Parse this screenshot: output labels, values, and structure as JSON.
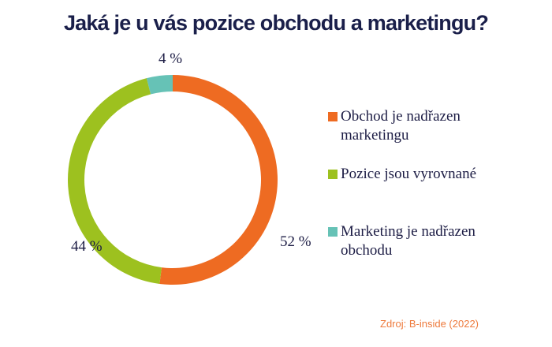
{
  "chart_data": {
    "type": "pie",
    "donut": true,
    "title": "Jaká je u vás pozice obchodu a marketingu?",
    "categories": [
      "Obchod je nadřazen marketingu",
      "Pozice jsou vyrovnané",
      "Marketing je nadřazen obchodu"
    ],
    "values": [
      52,
      44,
      4
    ],
    "data_labels": [
      "52 %",
      "44 %",
      "4 %"
    ],
    "colors": [
      "#ee6b22",
      "#9dc11f",
      "#66c2b6"
    ],
    "legend_position": "right",
    "source": "Zdroj: B-inside (2022)"
  }
}
